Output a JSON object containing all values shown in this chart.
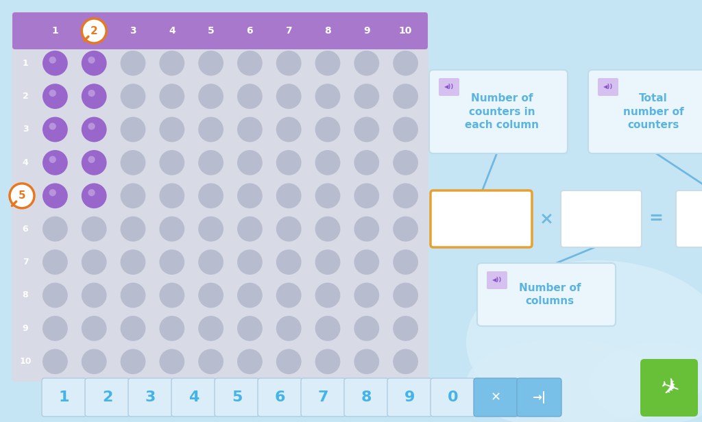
{
  "bg_color": "#c5e5f5",
  "grid_bg": "#d8dae6",
  "grid_header_bg": "#a878cc",
  "active_color": "#9966cc",
  "inactive_color": "#b8bccf",
  "label1_text": "Number of\ncounters in\neach column",
  "label2_text": "Total\nnumber of\ncounters",
  "label3_text": "Number of\ncolumns",
  "label_text_color": "#5ab4e0",
  "label_bg_color": "#eaf5fc",
  "label_border_color": "#c0dce8",
  "box_border_active": "#e8a030",
  "box_border_inactive": "#c8dce8",
  "connector_color": "#70b8e0",
  "bottom_btn_bg": "#daedf8",
  "bottom_btn_active_bg": "#78c0e8",
  "bottom_btn_text_color": "#44b4e8",
  "bottom_btns": [
    "1",
    "2",
    "3",
    "4",
    "5",
    "6",
    "7",
    "8",
    "9",
    "0"
  ],
  "green_btn_color": "#68c038",
  "orange_color": "#e87820",
  "speaker_bg": "#d5c0f0",
  "speaker_color": "#8855cc"
}
